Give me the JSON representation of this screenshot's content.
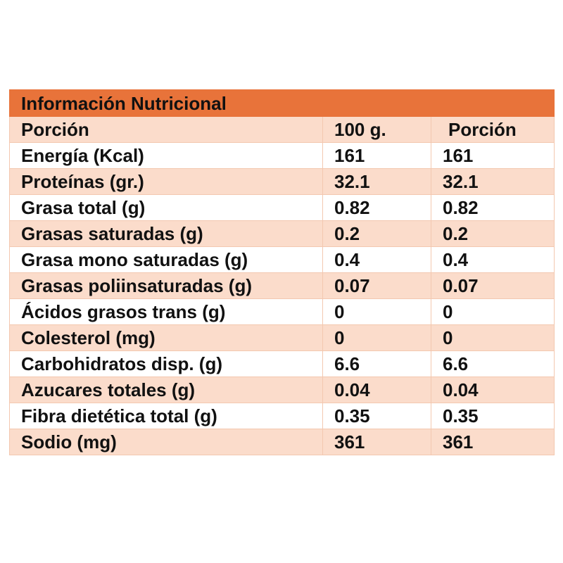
{
  "title": "Información Nutricional",
  "colors": {
    "header": "#e8733a",
    "shaded_row": "#fbdccb",
    "border": "#f3c8b0"
  },
  "columns": [
    "Porción",
    "100 g.",
    "Porción"
  ],
  "rows": [
    [
      "Energía (Kcal)",
      "161",
      "161"
    ],
    [
      "Proteínas (gr.)",
      "32.1",
      "32.1"
    ],
    [
      "Grasa total (g)",
      "0.82",
      "0.82"
    ],
    [
      "Grasas saturadas (g)",
      "0.2",
      "0.2"
    ],
    [
      "Grasa mono saturadas (g)",
      "0.4",
      "0.4"
    ],
    [
      "Grasas poliinsaturadas (g)",
      "0.07",
      "0.07"
    ],
    [
      "Ácidos grasos trans (g)",
      "0",
      "0"
    ],
    [
      "Colesterol (mg)",
      "0",
      "0"
    ],
    [
      "Carbohidratos disp. (g)",
      "6.6",
      "6.6"
    ],
    [
      "Azucares totales (g)",
      "0.04",
      "0.04"
    ],
    [
      "Fibra dietética total (g)",
      "0.35",
      "0.35"
    ],
    [
      "Sodio (mg)",
      "361",
      "361"
    ]
  ]
}
